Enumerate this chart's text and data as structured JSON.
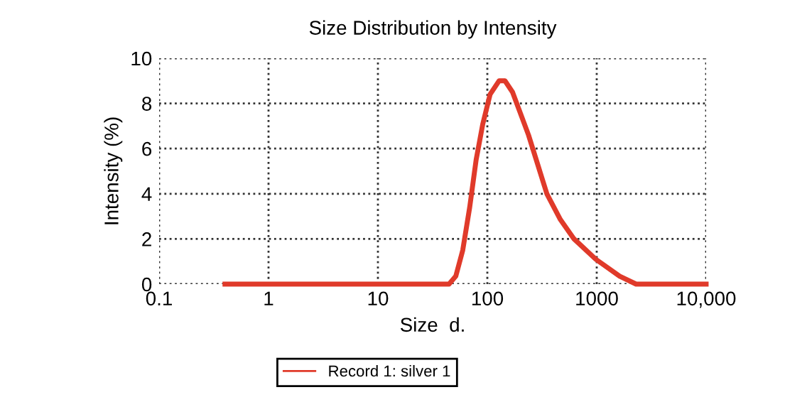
{
  "chart_data": {
    "type": "line",
    "title": "Size Distribution by Intensity",
    "xlabel": "Size  d.",
    "ylabel": "Intensity (%)",
    "x": [
      0.4,
      44.7,
      51.5,
      59.6,
      69,
      79,
      91,
      106,
      128,
      145,
      170,
      238,
      350,
      466,
      620,
      980,
      1620,
      2290,
      10000
    ],
    "series": [
      {
        "name": "Record 1: silver 1",
        "color": "#e03a2a",
        "values": [
          0,
          0,
          0.35,
          1.5,
          3.4,
          5.5,
          7.1,
          8.4,
          9.0,
          9.0,
          8.5,
          6.6,
          4.0,
          2.85,
          2.0,
          1.1,
          0.35,
          0,
          0
        ]
      }
    ],
    "log": "x",
    "xlim": [
      0.1,
      10000
    ],
    "xticks": [
      0.1,
      1,
      10,
      100,
      1000,
      {
        "value": 10000,
        "label": "10,000"
      }
    ],
    "ylim": [
      0,
      10
    ],
    "yticks": [
      0,
      2,
      4,
      6,
      8,
      10
    ],
    "grid": true,
    "legend": "bottom",
    "line_style": "solid",
    "marker": "none"
  }
}
